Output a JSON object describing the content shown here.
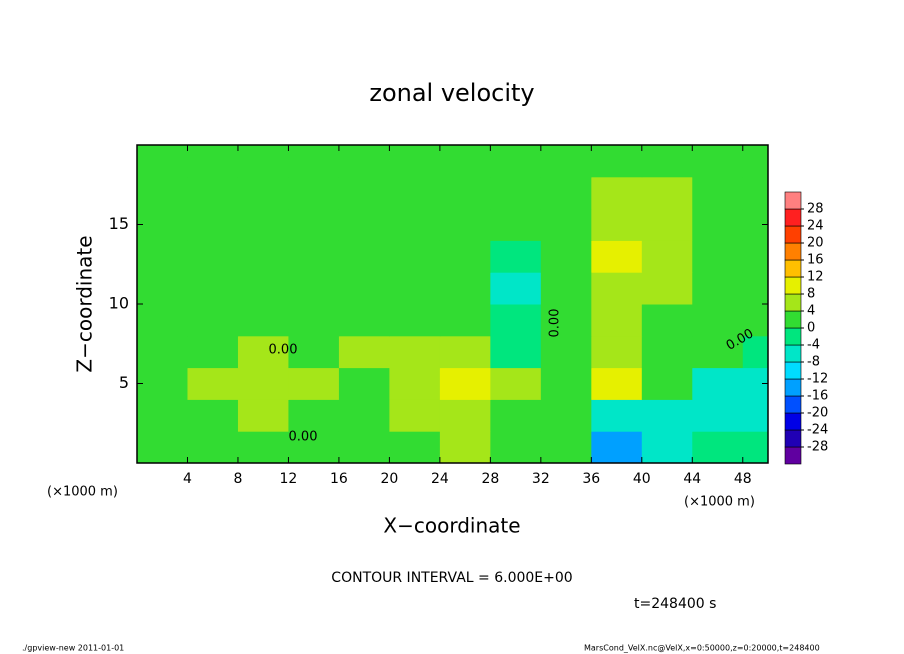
{
  "chart_data": {
    "type": "heatmap",
    "title": "zonal velocity",
    "x_label": "X−coordinate",
    "y_label": "Z−coordinate",
    "x_unit_left": "(×1000 m)",
    "x_unit_right": "(×1000 m)",
    "contour_interval": "CONTOUR INTERVAL = 6.000E+00",
    "time_label": "t=248400  s",
    "footer_left": "./gpview-new   2011-01-01",
    "footer_right": "MarsCond_VelX.nc@VelX,x=0:50000,z=0:20000,t=248400",
    "contour_labels": [
      "0.00",
      "0.00",
      "0.00",
      "0.00"
    ],
    "xlim": [
      0,
      50
    ],
    "ylim": [
      0,
      20
    ],
    "xticks": [
      4,
      8,
      12,
      16,
      20,
      24,
      28,
      32,
      36,
      40,
      44,
      48
    ],
    "yticks": [
      5,
      10,
      15
    ],
    "x": [
      2,
      6,
      10,
      14,
      18,
      22,
      26,
      30,
      34,
      38,
      42,
      46,
      50
    ],
    "y": [
      1,
      3,
      5,
      7,
      9,
      11,
      13,
      15,
      17,
      19
    ],
    "z": [
      [
        2,
        3,
        2,
        0,
        1,
        3,
        4,
        1,
        2,
        -14,
        -8,
        -3,
        -4
      ],
      [
        1,
        3,
        6,
        2,
        2,
        5,
        5,
        3,
        1,
        -5,
        -7,
        -6,
        -7
      ],
      [
        2,
        5,
        7,
        4,
        3,
        6,
        9,
        4,
        2,
        10,
        3,
        -5,
        -6
      ],
      [
        0,
        2,
        4,
        3,
        4,
        6,
        5,
        -2,
        3,
        5,
        3,
        1,
        -1
      ],
      [
        2,
        1,
        2,
        1,
        2,
        3,
        1,
        -3,
        3,
        5,
        3,
        2,
        1
      ],
      [
        2,
        1,
        2,
        1,
        2,
        2,
        1,
        -6,
        3,
        5,
        4,
        2,
        2
      ],
      [
        2,
        2,
        1,
        1,
        2,
        2,
        1,
        -3,
        2,
        8,
        6,
        3,
        2
      ],
      [
        2,
        2,
        1,
        0,
        1,
        2,
        2,
        1,
        2,
        7,
        5,
        3,
        2
      ],
      [
        2,
        2,
        1,
        0,
        1,
        2,
        1,
        2,
        1,
        6,
        5,
        3,
        2
      ],
      [
        3,
        2,
        1,
        0,
        1,
        2,
        1,
        2,
        1,
        2,
        3,
        2,
        2
      ]
    ],
    "levels": [
      -28,
      -24,
      -20,
      -16,
      -12,
      -8,
      -4,
      0,
      4,
      8,
      12,
      16,
      20,
      24,
      28
    ],
    "colors": [
      "#6000a0",
      "#2000b4",
      "#0000e6",
      "#0050ff",
      "#00a0ff",
      "#00dcff",
      "#00e6c8",
      "#00e67e",
      "#32dc32",
      "#a5e619",
      "#e6f000",
      "#ffbf00",
      "#ff8000",
      "#ff4000",
      "#ff2020",
      "#ff8080"
    ]
  }
}
